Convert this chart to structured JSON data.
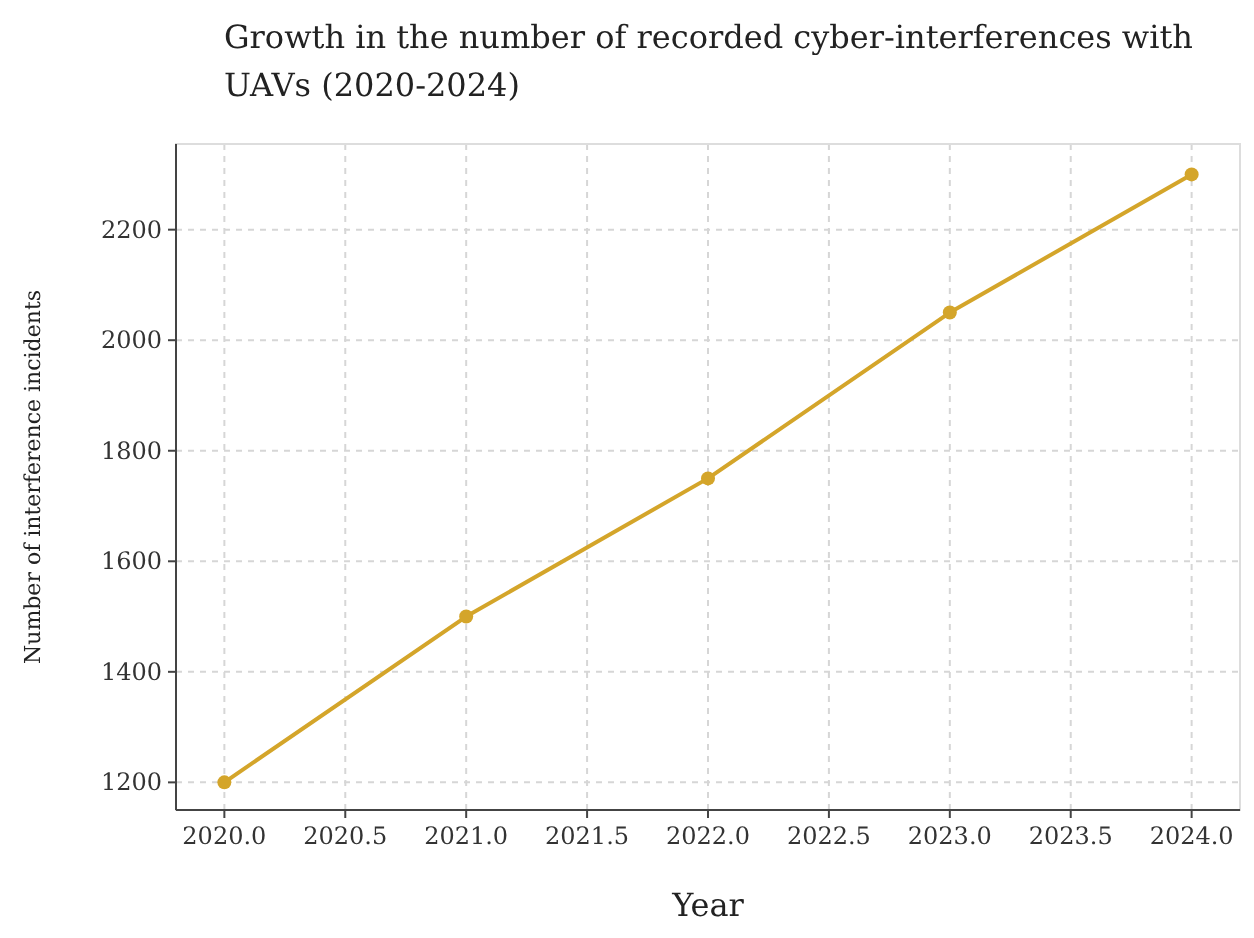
{
  "chart_data": {
    "type": "line",
    "title": "Growth in the number of recorded cyber-interferences with UAVs (2020-2024)",
    "xlabel": "Year",
    "ylabel": "Number of interference incidents",
    "x": [
      2020,
      2021,
      2022,
      2023,
      2024
    ],
    "series": [
      {
        "color": "#d4a52a",
        "values": [
          1200,
          1500,
          1750,
          2050,
          2300
        ]
      }
    ],
    "xlim": [
      2019.8,
      2024.2
    ],
    "ylim": [
      1150,
      2355
    ],
    "xticks": [
      {
        "value": 2020,
        "label": "2020.0"
      },
      {
        "value": 2020.5,
        "label": "2020.5"
      },
      {
        "value": 2021,
        "label": "2021.0"
      },
      {
        "value": 2021.5,
        "label": "2021.5"
      },
      {
        "value": 2022,
        "label": "2022.0"
      },
      {
        "value": 2022.5,
        "label": "2022.5"
      },
      {
        "value": 2023,
        "label": "2023.0"
      },
      {
        "value": 2023.5,
        "label": "2023.5"
      },
      {
        "value": 2024,
        "label": "2024.0"
      }
    ],
    "yticks": [
      1200,
      1400,
      1600,
      1800,
      2000,
      2200
    ],
    "grid": true,
    "marker": "circle",
    "line_style": "solid"
  }
}
